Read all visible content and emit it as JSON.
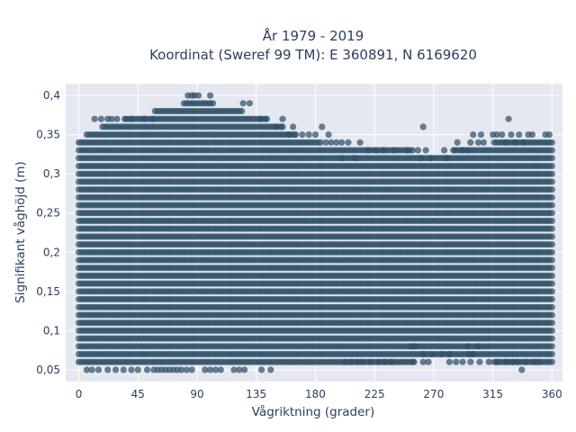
{
  "chart_data": {
    "type": "scatter",
    "title_lines": [
      "År 1979 - 2019",
      "Koordinat (Sweref 99 TM): E 360891, N 6169620"
    ],
    "xlabel": "Vågriktning (grader)",
    "ylabel": "Signifikant våghöjd (m)",
    "xlim": [
      -10,
      368
    ],
    "ylim": [
      0.035,
      0.415
    ],
    "x_ticks": [
      0,
      45,
      90,
      135,
      180,
      225,
      270,
      315,
      360
    ],
    "x_tick_labels": [
      "0",
      "45",
      "90",
      "135",
      "180",
      "225",
      "270",
      "315",
      "360"
    ],
    "y_ticks": [
      0.05,
      0.1,
      0.15,
      0.2,
      0.25,
      0.3,
      0.35,
      0.4
    ],
    "y_tick_labels": [
      "0,05",
      "0,1",
      "0,15",
      "0,2",
      "0,25",
      "0,3",
      "0,35",
      "0,4"
    ],
    "grid": true,
    "marker_color": "#2f5168",
    "background_color": "#e5e8f0",
    "x_step": 2,
    "y_step": 0.01,
    "dense_band": {
      "x": [
        0,
        360
      ],
      "y_by_x": [
        {
          "x": 0,
          "ymin": 0.06,
          "ymax": 0.34
        },
        {
          "x": 10,
          "ymin": 0.06,
          "ymax": 0.35
        },
        {
          "x": 25,
          "ymin": 0.06,
          "ymax": 0.36
        },
        {
          "x": 45,
          "ymin": 0.06,
          "ymax": 0.37
        },
        {
          "x": 70,
          "ymin": 0.06,
          "ymax": 0.38
        },
        {
          "x": 90,
          "ymin": 0.06,
          "ymax": 0.39
        },
        {
          "x": 115,
          "ymin": 0.06,
          "ymax": 0.38
        },
        {
          "x": 135,
          "ymin": 0.06,
          "ymax": 0.37
        },
        {
          "x": 150,
          "ymin": 0.06,
          "ymax": 0.36
        },
        {
          "x": 170,
          "ymin": 0.06,
          "ymax": 0.34
        },
        {
          "x": 200,
          "ymin": 0.06,
          "ymax": 0.33
        },
        {
          "x": 240,
          "ymin": 0.06,
          "ymax": 0.33
        },
        {
          "x": 270,
          "ymin": 0.07,
          "ymax": 0.32
        },
        {
          "x": 300,
          "ymin": 0.07,
          "ymax": 0.33
        },
        {
          "x": 330,
          "ymin": 0.06,
          "ymax": 0.34
        },
        {
          "x": 360,
          "ymin": 0.06,
          "ymax": 0.34
        }
      ]
    },
    "sparse_points": [
      [
        6,
        0.05
      ],
      [
        10,
        0.05
      ],
      [
        15,
        0.05
      ],
      [
        22,
        0.05
      ],
      [
        28,
        0.05
      ],
      [
        34,
        0.05
      ],
      [
        40,
        0.05
      ],
      [
        45,
        0.05
      ],
      [
        52,
        0.05
      ],
      [
        57,
        0.05
      ],
      [
        60,
        0.05
      ],
      [
        63,
        0.05
      ],
      [
        66,
        0.05
      ],
      [
        69,
        0.05
      ],
      [
        72,
        0.05
      ],
      [
        75,
        0.05
      ],
      [
        78,
        0.05
      ],
      [
        82,
        0.05
      ],
      [
        86,
        0.05
      ],
      [
        96,
        0.05
      ],
      [
        100,
        0.05
      ],
      [
        104,
        0.05
      ],
      [
        108,
        0.05
      ],
      [
        118,
        0.05
      ],
      [
        122,
        0.05
      ],
      [
        126,
        0.05
      ],
      [
        139,
        0.05
      ],
      [
        146,
        0.05
      ],
      [
        83,
        0.4
      ],
      [
        86,
        0.4
      ],
      [
        88,
        0.4
      ],
      [
        91,
        0.4
      ],
      [
        100,
        0.4
      ],
      [
        12,
        0.37
      ],
      [
        17,
        0.37
      ],
      [
        22,
        0.37
      ],
      [
        25,
        0.37
      ],
      [
        29,
        0.37
      ],
      [
        35,
        0.37
      ],
      [
        40,
        0.37
      ],
      [
        50,
        0.37
      ],
      [
        56,
        0.37
      ],
      [
        138,
        0.37
      ],
      [
        143,
        0.37
      ],
      [
        155,
        0.37
      ],
      [
        125,
        0.39
      ],
      [
        130,
        0.39
      ],
      [
        150,
        0.36
      ],
      [
        155,
        0.36
      ],
      [
        163,
        0.36
      ],
      [
        185,
        0.36
      ],
      [
        160,
        0.35
      ],
      [
        165,
        0.35
      ],
      [
        170,
        0.35
      ],
      [
        175,
        0.35
      ],
      [
        180,
        0.35
      ],
      [
        190,
        0.35
      ],
      [
        262,
        0.36
      ],
      [
        300,
        0.35
      ],
      [
        306,
        0.35
      ],
      [
        315,
        0.35
      ],
      [
        318,
        0.35
      ],
      [
        322,
        0.35
      ],
      [
        327,
        0.37
      ],
      [
        329,
        0.35
      ],
      [
        335,
        0.35
      ],
      [
        342,
        0.35
      ],
      [
        345,
        0.35
      ],
      [
        355,
        0.35
      ],
      [
        358,
        0.35
      ],
      [
        188,
        0.34
      ],
      [
        192,
        0.34
      ],
      [
        196,
        0.34
      ],
      [
        200,
        0.34
      ],
      [
        205,
        0.34
      ],
      [
        214,
        0.34
      ],
      [
        288,
        0.34
      ],
      [
        298,
        0.34
      ],
      [
        304,
        0.34
      ],
      [
        308,
        0.34
      ],
      [
        325,
        0.34
      ],
      [
        332,
        0.34
      ],
      [
        338,
        0.34
      ],
      [
        220,
        0.33
      ],
      [
        226,
        0.33
      ],
      [
        232,
        0.33
      ],
      [
        240,
        0.33
      ],
      [
        250,
        0.33
      ],
      [
        258,
        0.33
      ],
      [
        264,
        0.33
      ],
      [
        278,
        0.33
      ],
      [
        285,
        0.33
      ],
      [
        292,
        0.33
      ],
      [
        296,
        0.33
      ],
      [
        200,
        0.32
      ],
      [
        210,
        0.32
      ],
      [
        260,
        0.32
      ],
      [
        268,
        0.32
      ],
      [
        280,
        0.32
      ],
      [
        203,
        0.06
      ],
      [
        207,
        0.06
      ],
      [
        212,
        0.06
      ],
      [
        216,
        0.06
      ],
      [
        222,
        0.06
      ],
      [
        228,
        0.06
      ],
      [
        233,
        0.06
      ],
      [
        238,
        0.06
      ],
      [
        255,
        0.06
      ],
      [
        262,
        0.06
      ],
      [
        266,
        0.06
      ],
      [
        282,
        0.06
      ],
      [
        287,
        0.06
      ],
      [
        292,
        0.06
      ],
      [
        298,
        0.06
      ],
      [
        305,
        0.06
      ],
      [
        312,
        0.06
      ],
      [
        318,
        0.06
      ],
      [
        325,
        0.06
      ],
      [
        330,
        0.06
      ],
      [
        334,
        0.06
      ],
      [
        340,
        0.06
      ],
      [
        346,
        0.06
      ],
      [
        350,
        0.06
      ],
      [
        262,
        0.07
      ],
      [
        269,
        0.07
      ],
      [
        276,
        0.07
      ],
      [
        282,
        0.07
      ],
      [
        297,
        0.07
      ],
      [
        300,
        0.07
      ],
      [
        253,
        0.08
      ],
      [
        256,
        0.08
      ],
      [
        296,
        0.08
      ],
      [
        304,
        0.08
      ],
      [
        337,
        0.05
      ]
    ]
  }
}
